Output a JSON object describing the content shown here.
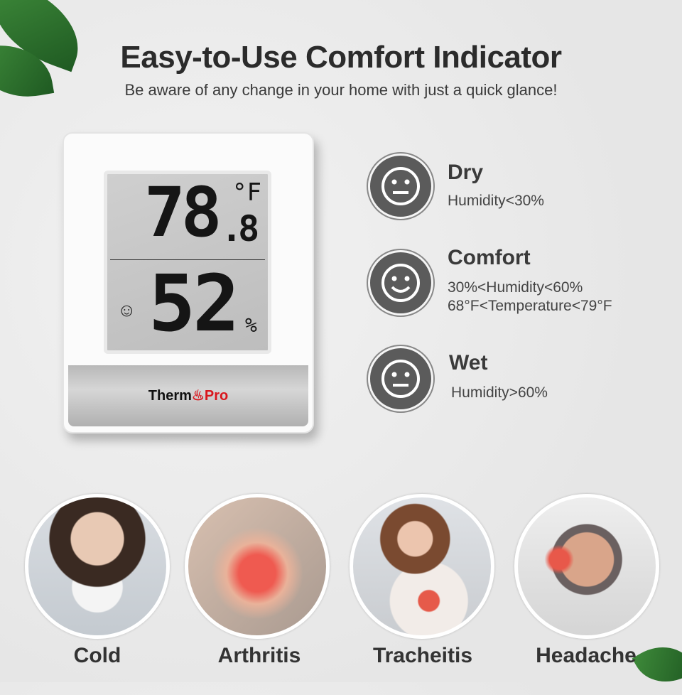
{
  "header": {
    "title": "Easy-to-Use Comfort Indicator",
    "subtitle": "Be aware of any change in your home with just a quick glance!"
  },
  "device": {
    "temperature": "78",
    "temperature_decimal": ".8",
    "temperature_unit": "°F",
    "humidity": "52",
    "humidity_unit": "%",
    "comfort_icon": "smiley-icon",
    "brand_a": "Therm",
    "brand_b": "Pro"
  },
  "conditions": [
    {
      "title": "Dry",
      "lines": [
        "Humidity<30%"
      ],
      "icon": "neutral-face-icon"
    },
    {
      "title": "Comfort",
      "lines": [
        "30%<Humidity<60%",
        "68°F<Temperature<79°F"
      ],
      "icon": "smiley-face-icon"
    },
    {
      "title": "Wet",
      "lines": [
        "Humidity>60%"
      ],
      "icon": "neutral-face-icon"
    }
  ],
  "symptoms": [
    {
      "label": "Cold"
    },
    {
      "label": "Arthritis"
    },
    {
      "label": "Tracheitis"
    },
    {
      "label": "Headache"
    }
  ],
  "colors": {
    "brand_red": "#d9161c",
    "face_icon": "#5b5b5b"
  }
}
